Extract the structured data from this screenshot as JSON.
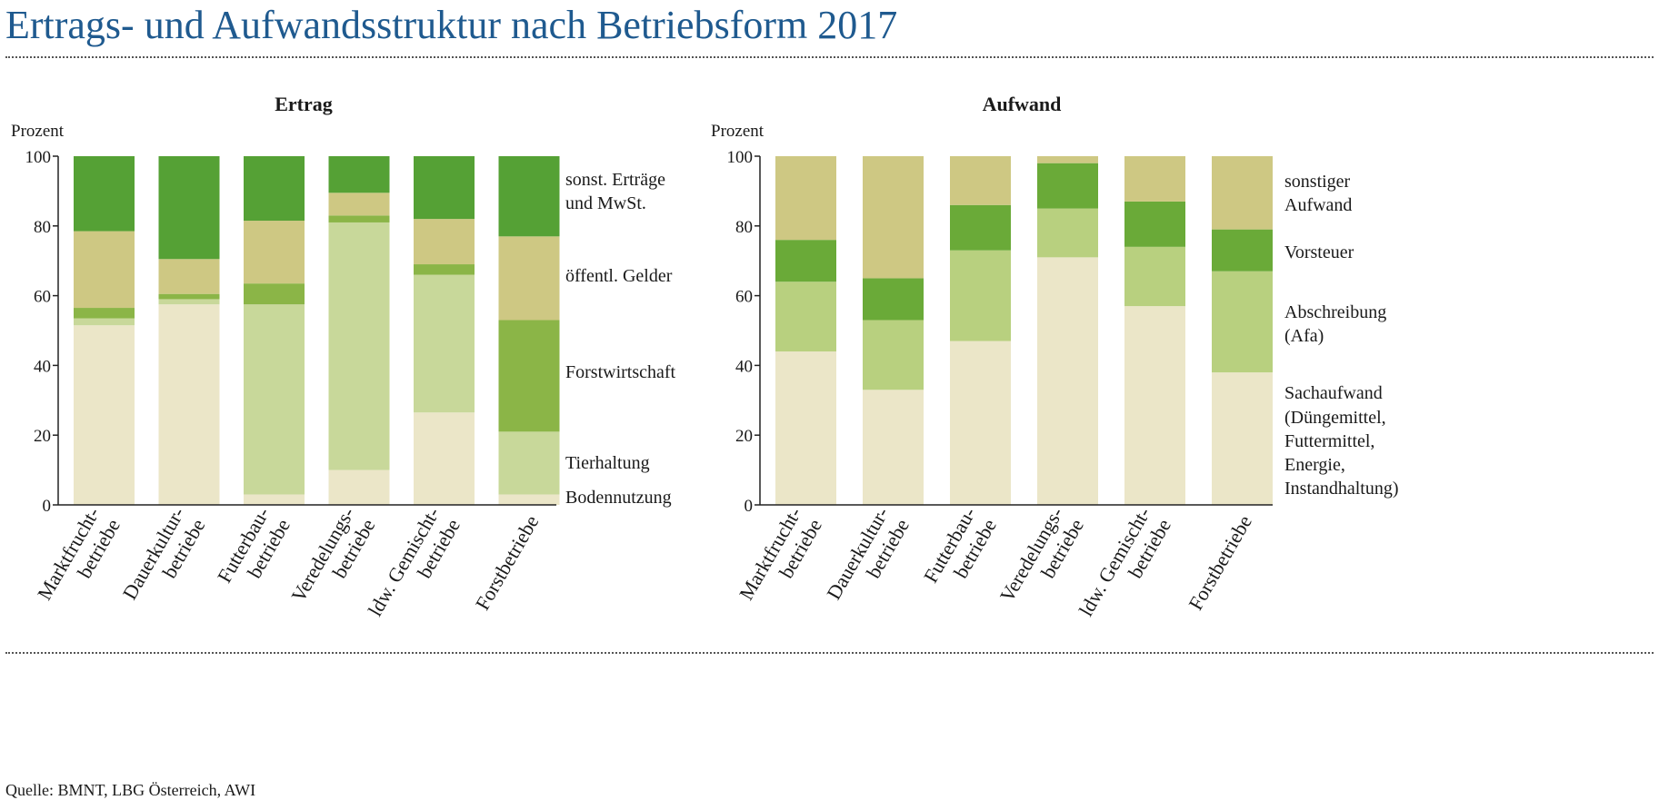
{
  "page": {
    "title": "Ertrags- und Aufwandsstruktur nach Betriebsform 2017",
    "source": "Quelle: BMNT, LBG Österreich, AWI"
  },
  "chart_data": [
    {
      "type": "bar",
      "stacked": true,
      "title": "Ertrag",
      "ylabel": "Prozent",
      "ylim": [
        0,
        100
      ],
      "yticks": [
        0,
        20,
        40,
        60,
        80,
        100
      ],
      "categories": [
        "Marktfrucht-\nbetriebe",
        "Dauerkultur-\nbetriebe",
        "Futterbau-\nbetriebe",
        "Veredelungs-\nbetriebe",
        "ldw. Gemischt-\nbetriebe",
        "Forstbetriebe"
      ],
      "series": [
        {
          "name": "Bodennutzung",
          "color": "#ebe6c8",
          "values": [
            51.5,
            57.5,
            3,
            10,
            26.5,
            3
          ]
        },
        {
          "name": "Tierhaltung",
          "color": "#c8d89a",
          "values": [
            2,
            1.5,
            54.5,
            71,
            39.5,
            18
          ]
        },
        {
          "name": "Forstwirtschaft",
          "color": "#8bb547",
          "values": [
            3,
            1.5,
            6,
            2,
            3,
            32
          ]
        },
        {
          "name": "öffentl. Gelder",
          "color": "#cec883",
          "values": [
            22,
            10,
            18,
            6.5,
            13,
            24
          ]
        },
        {
          "name": "sonst. Erträge\nund MwSt.",
          "color": "#55a135",
          "values": [
            21.5,
            29.5,
            18.5,
            10.5,
            18,
            23
          ]
        }
      ]
    },
    {
      "type": "bar",
      "stacked": true,
      "title": "Aufwand",
      "ylabel": "Prozent",
      "ylim": [
        0,
        100
      ],
      "yticks": [
        0,
        20,
        40,
        60,
        80,
        100
      ],
      "categories": [
        "Marktfrucht-\nbetriebe",
        "Dauerkultur-\nbetriebe",
        "Futterbau-\nbetriebe",
        "Veredelungs-\nbetriebe",
        "ldw. Gemischt-\nbetriebe",
        "Forstbetriebe"
      ],
      "series": [
        {
          "name": "Sachaufwand\n(Düngemittel,\nFuttermittel,\nEnergie,\nInstandhaltung)",
          "color": "#ebe6c8",
          "values": [
            44,
            33,
            47,
            71,
            57,
            38
          ]
        },
        {
          "name": "Abschreibung\n(Afa)",
          "color": "#b8d07f",
          "values": [
            20,
            20,
            26,
            14,
            17,
            29
          ]
        },
        {
          "name": "Vorsteuer",
          "color": "#6aaa38",
          "values": [
            12,
            12,
            13,
            13,
            13,
            12
          ]
        },
        {
          "name": "sonstiger\nAufwand",
          "color": "#cec883",
          "values": [
            24,
            35,
            14,
            2,
            13,
            21
          ]
        }
      ]
    }
  ]
}
